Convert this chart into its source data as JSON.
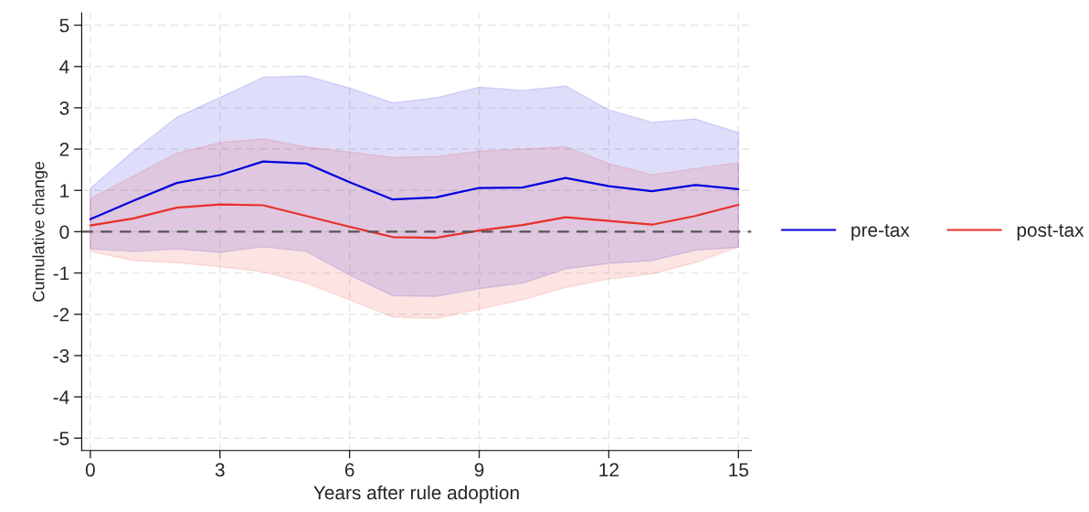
{
  "chart_data": {
    "type": "line",
    "xlabel": "Years after rule adoption",
    "ylabel": "Cumulative change",
    "x": [
      0,
      1,
      2,
      3,
      4,
      5,
      6,
      7,
      8,
      9,
      10,
      11,
      12,
      13,
      14,
      15
    ],
    "series": [
      {
        "name": "pre-tax",
        "color": "#0000dd",
        "values": [
          0.3,
          0.75,
          1.18,
          1.37,
          1.7,
          1.65,
          1.2,
          0.78,
          0.83,
          1.06,
          1.07,
          1.3,
          1.1,
          0.98,
          1.13,
          1.03
        ],
        "lower": [
          -0.42,
          -0.48,
          -0.42,
          -0.5,
          -0.37,
          -0.48,
          -1.05,
          -1.55,
          -1.57,
          -1.38,
          -1.25,
          -0.9,
          -0.77,
          -0.7,
          -0.45,
          -0.38
        ],
        "upper": [
          1.05,
          1.95,
          2.77,
          3.25,
          3.74,
          3.77,
          3.48,
          3.12,
          3.24,
          3.5,
          3.42,
          3.53,
          2.95,
          2.65,
          2.73,
          2.4
        ]
      },
      {
        "name": "post-tax",
        "color": "#e8302a",
        "values": [
          0.15,
          0.32,
          0.58,
          0.66,
          0.64,
          0.38,
          0.12,
          -0.13,
          -0.15,
          0.03,
          0.16,
          0.35,
          0.26,
          0.17,
          0.38,
          0.65
        ],
        "lower": [
          -0.48,
          -0.7,
          -0.75,
          -0.85,
          -0.97,
          -1.25,
          -1.65,
          -2.07,
          -2.1,
          -1.88,
          -1.65,
          -1.35,
          -1.15,
          -1.02,
          -0.75,
          -0.37
        ],
        "upper": [
          0.8,
          1.35,
          1.9,
          2.16,
          2.25,
          2.05,
          1.93,
          1.8,
          1.82,
          1.95,
          2.0,
          2.06,
          1.65,
          1.38,
          1.53,
          1.67
        ]
      }
    ],
    "xlim": [
      -0.2,
      15.3
    ],
    "ylim": [
      -5.3,
      5.3
    ],
    "xticks": [
      0,
      3,
      6,
      9,
      12,
      15
    ],
    "yticks": [
      -5,
      -4,
      -3,
      -2,
      -1,
      0,
      1,
      2,
      3,
      4,
      5
    ],
    "ref_lines": [
      {
        "axis": "y",
        "value": 0,
        "color": "#555555",
        "line_style": "dashed"
      }
    ],
    "grid": true,
    "legend": "right",
    "marker": "none",
    "line_style": "solid"
  }
}
